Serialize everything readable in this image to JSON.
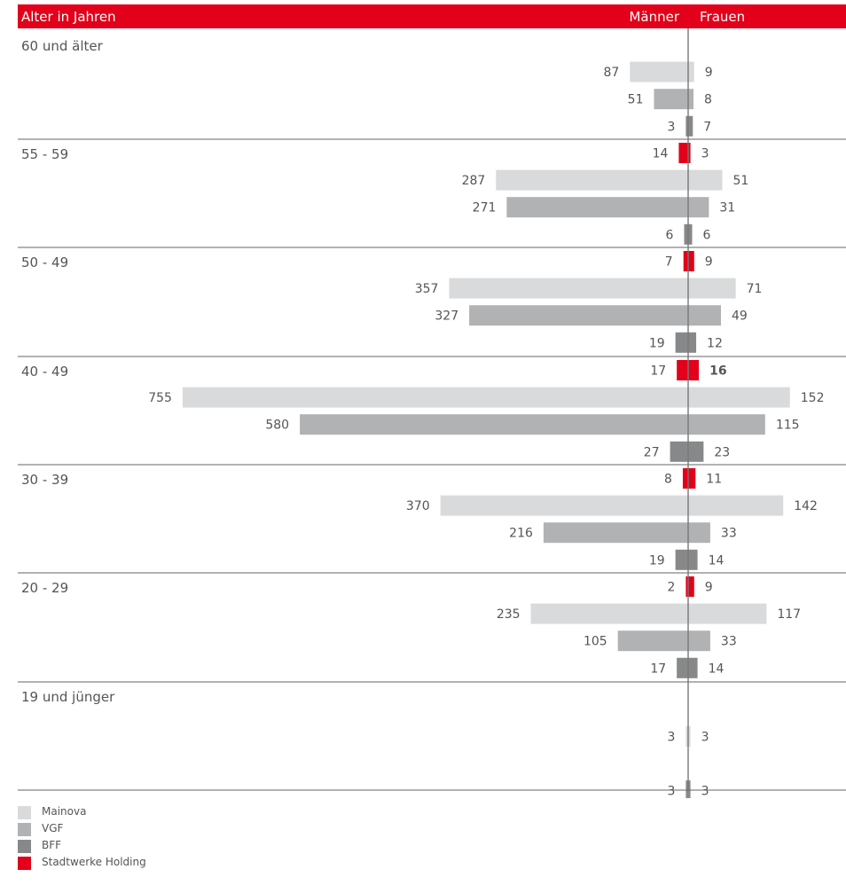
{
  "colors": {
    "header": "#e2001a",
    "Mainova": "#d9dadb",
    "VGF": "#b1b2b3",
    "BFF": "#878889",
    "Stadtwerke Holding": "#e2001a"
  },
  "chart_data": {
    "type": "bar",
    "orientation": "horizontal-diverging",
    "header": {
      "axis_label": "Alter in Jahren",
      "left_label": "Männer",
      "right_label": "Frauen"
    },
    "legend": {
      "position": "bottom-left",
      "items": [
        "Mainova",
        "VGF",
        "BFF",
        "Stadtwerke Holding"
      ]
    },
    "groups": [
      {
        "label": "60 und älter",
        "rows": [
          {
            "series": "Mainova",
            "men": 87,
            "women": 9
          },
          {
            "series": "VGF",
            "men": 51,
            "women": 8
          },
          {
            "series": "BFF",
            "men": 3,
            "women": 7
          }
        ]
      },
      {
        "label": "55 - 59",
        "rows": [
          {
            "series": "Stadtwerke Holding",
            "men": 14,
            "women": 3
          },
          {
            "series": "Mainova",
            "men": 287,
            "women": 51
          },
          {
            "series": "VGF",
            "men": 271,
            "women": 31
          },
          {
            "series": "BFF",
            "men": 6,
            "women": 6
          }
        ]
      },
      {
        "label": "50 - 49",
        "rows": [
          {
            "series": "Stadtwerke Holding",
            "men": 7,
            "women": 9
          },
          {
            "series": "Mainova",
            "men": 357,
            "women": 71
          },
          {
            "series": "VGF",
            "men": 327,
            "women": 49
          },
          {
            "series": "BFF",
            "men": 19,
            "women": 12
          }
        ]
      },
      {
        "label": "40 - 49",
        "rows": [
          {
            "series": "Stadtwerke Holding",
            "men": 17,
            "women": 16
          },
          {
            "series": "Mainova",
            "men": 755,
            "women": 152
          },
          {
            "series": "VGF",
            "men": 580,
            "women": 115
          },
          {
            "series": "BFF",
            "men": 27,
            "women": 23
          }
        ]
      },
      {
        "label": "30 - 39",
        "rows": [
          {
            "series": "Stadtwerke Holding",
            "men": 8,
            "women": 11
          },
          {
            "series": "Mainova",
            "men": 370,
            "women": 142
          },
          {
            "series": "VGF",
            "men": 216,
            "women": 33
          },
          {
            "series": "BFF",
            "men": 19,
            "women": 14
          }
        ]
      },
      {
        "label": "20 - 29",
        "rows": [
          {
            "series": "Stadtwerke Holding",
            "men": 2,
            "women": 9
          },
          {
            "series": "Mainova",
            "men": 235,
            "women": 117
          },
          {
            "series": "VGF",
            "men": 105,
            "women": 33
          },
          {
            "series": "BFF",
            "men": 17,
            "women": 14
          }
        ]
      },
      {
        "label": "19 und jünger",
        "rows": [
          {
            "series": "Mainova",
            "men": 3,
            "women": 3
          },
          {
            "series": "BFF",
            "men": 3,
            "women": 3
          }
        ]
      }
    ]
  }
}
